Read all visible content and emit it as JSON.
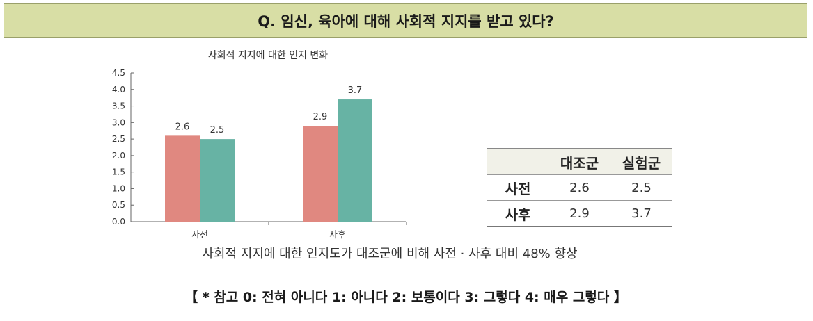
{
  "question": "Q. 임신, 육아에 대해 사회적 지지를 받고 있다?",
  "chart_data": {
    "type": "bar",
    "title": "사회적 지지에 대한 인지 변화",
    "categories": [
      "사전",
      "사후"
    ],
    "series": [
      {
        "values": [
          2.6,
          2.9
        ],
        "color": "#e08880"
      },
      {
        "values": [
          2.5,
          3.7
        ],
        "color": "#67b3a4"
      }
    ],
    "ylim": [
      0,
      4.5
    ],
    "yticks": [
      "0.0",
      "0.5",
      "1.0",
      "1.5",
      "2.0",
      "2.5",
      "3.0",
      "3.5",
      "4.0",
      "4.5"
    ],
    "data_labels": [
      [
        "2.6",
        "2.9"
      ],
      [
        "2.5",
        "3.7"
      ]
    ],
    "grid": false
  },
  "table": {
    "headers": [
      "",
      "대조군",
      "실험군"
    ],
    "rows": [
      {
        "label": "사전",
        "values": [
          "2.6",
          "2.5"
        ]
      },
      {
        "label": "사후",
        "values": [
          "2.9",
          "3.7"
        ]
      }
    ]
  },
  "caption": "사회적 지지에 대한 인지도가 대조군에 비해 사전 · 사후 대비 48% 향상",
  "footnote": "【 * 참고 0: 전혀 아니다 1: 아니다 2: 보통이다 3: 그렇다 4: 매우 그렇다 】"
}
